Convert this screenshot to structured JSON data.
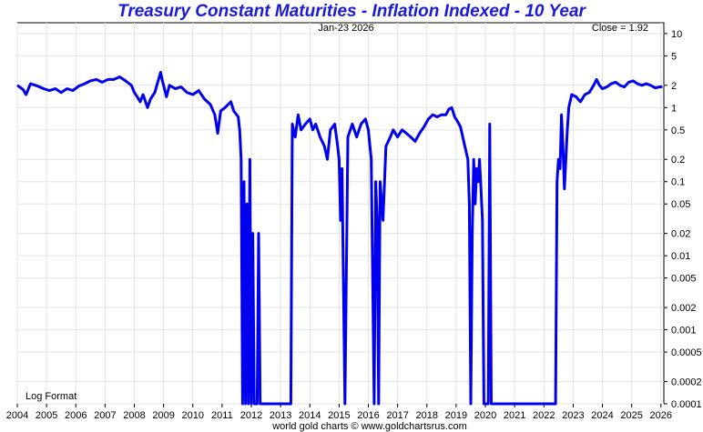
{
  "chart_data": {
    "type": "line",
    "title": "Treasury Constant Maturities - Inflation Indexed - 10 Year",
    "date_label": "Jan-23  2026",
    "close_label": "Close = 1.92",
    "scale_label": "Log Format",
    "footer": "world gold charts © www.goldchartsrus.com",
    "scale": "log",
    "xlim": [
      2004.0,
      2026.1
    ],
    "ylim": [
      0.0001,
      14
    ],
    "grid": true,
    "line_color": "#0000ee",
    "x_ticks": [
      "2004",
      "2005",
      "2006",
      "2007",
      "2008",
      "2009",
      "2010",
      "2011",
      "2012",
      "2013",
      "2014",
      "2015",
      "2016",
      "2017",
      "2018",
      "2019",
      "2020",
      "2021",
      "2022",
      "2023",
      "2024",
      "2025",
      "2026"
    ],
    "y_ticks": [
      {
        "v": 10,
        "label": "10"
      },
      {
        "v": 5,
        "label": "5"
      },
      {
        "v": 2,
        "label": "2"
      },
      {
        "v": 1,
        "label": "1"
      },
      {
        "v": 0.5,
        "label": "0.5"
      },
      {
        "v": 0.2,
        "label": "0.2"
      },
      {
        "v": 0.1,
        "label": "0.1"
      },
      {
        "v": 0.05,
        "label": "0.05"
      },
      {
        "v": 0.02,
        "label": "0.02"
      },
      {
        "v": 0.01,
        "label": "0.01"
      },
      {
        "v": 0.005,
        "label": "0.005"
      },
      {
        "v": 0.002,
        "label": "0.002"
      },
      {
        "v": 0.001,
        "label": "0.001"
      },
      {
        "v": 0.0005,
        "label": "0.0005"
      },
      {
        "v": 0.0002,
        "label": "0.0002"
      },
      {
        "v": 0.0001,
        "label": "0.0001"
      }
    ],
    "series": [
      {
        "points": [
          [
            2004.0,
            2.0
          ],
          [
            2004.2,
            1.75
          ],
          [
            2004.3,
            1.5
          ],
          [
            2004.45,
            2.1
          ],
          [
            2004.7,
            1.95
          ],
          [
            2004.9,
            1.8
          ],
          [
            2005.1,
            1.7
          ],
          [
            2005.3,
            1.8
          ],
          [
            2005.5,
            1.6
          ],
          [
            2005.7,
            1.8
          ],
          [
            2005.9,
            1.7
          ],
          [
            2006.1,
            1.95
          ],
          [
            2006.3,
            2.1
          ],
          [
            2006.5,
            2.3
          ],
          [
            2006.7,
            2.4
          ],
          [
            2006.9,
            2.2
          ],
          [
            2007.1,
            2.4
          ],
          [
            2007.3,
            2.4
          ],
          [
            2007.5,
            2.6
          ],
          [
            2007.7,
            2.3
          ],
          [
            2007.9,
            2.0
          ],
          [
            2008.0,
            1.6
          ],
          [
            2008.1,
            1.4
          ],
          [
            2008.2,
            1.2
          ],
          [
            2008.3,
            1.5
          ],
          [
            2008.45,
            1.0
          ],
          [
            2008.55,
            1.3
          ],
          [
            2008.7,
            1.6
          ],
          [
            2008.8,
            2.2
          ],
          [
            2008.9,
            3.0
          ],
          [
            2008.95,
            2.4
          ],
          [
            2009.0,
            2.0
          ],
          [
            2009.1,
            1.4
          ],
          [
            2009.2,
            2.0
          ],
          [
            2009.4,
            1.8
          ],
          [
            2009.6,
            1.9
          ],
          [
            2009.8,
            1.6
          ],
          [
            2010.0,
            1.5
          ],
          [
            2010.2,
            1.7
          ],
          [
            2010.4,
            1.3
          ],
          [
            2010.6,
            1.1
          ],
          [
            2010.75,
            0.8
          ],
          [
            2010.85,
            0.45
          ],
          [
            2010.95,
            0.9
          ],
          [
            2011.1,
            1.0
          ],
          [
            2011.3,
            1.2
          ],
          [
            2011.4,
            0.9
          ],
          [
            2011.55,
            0.75
          ],
          [
            2011.6,
            0.5
          ],
          [
            2011.65,
            0.2
          ],
          [
            2011.7,
            0.0001
          ],
          [
            2011.75,
            0.1
          ],
          [
            2011.8,
            0.0001
          ],
          [
            2011.85,
            0.05
          ],
          [
            2011.9,
            0.0001
          ],
          [
            2011.95,
            0.2
          ],
          [
            2012.0,
            0.0001
          ],
          [
            2012.05,
            0.02
          ],
          [
            2012.1,
            0.0001
          ],
          [
            2012.2,
            0.0001
          ],
          [
            2012.25,
            0.02
          ],
          [
            2012.3,
            0.0001
          ],
          [
            2013.35,
            0.0001
          ],
          [
            2013.4,
            0.6
          ],
          [
            2013.5,
            0.4
          ],
          [
            2013.6,
            0.8
          ],
          [
            2013.7,
            0.5
          ],
          [
            2013.85,
            0.6
          ],
          [
            2014.0,
            0.7
          ],
          [
            2014.1,
            0.5
          ],
          [
            2014.2,
            0.6
          ],
          [
            2014.35,
            0.4
          ],
          [
            2014.5,
            0.3
          ],
          [
            2014.6,
            0.2
          ],
          [
            2014.7,
            0.5
          ],
          [
            2014.85,
            0.6
          ],
          [
            2014.95,
            0.3
          ],
          [
            2015.0,
            0.2
          ],
          [
            2015.05,
            0.03
          ],
          [
            2015.1,
            0.15
          ],
          [
            2015.2,
            0.0001
          ],
          [
            2015.3,
            0.4
          ],
          [
            2015.45,
            0.6
          ],
          [
            2015.6,
            0.4
          ],
          [
            2015.75,
            0.6
          ],
          [
            2015.9,
            0.7
          ],
          [
            2016.0,
            0.5
          ],
          [
            2016.1,
            0.2
          ],
          [
            2016.2,
            0.0001
          ],
          [
            2016.25,
            0.1
          ],
          [
            2016.3,
            0.03
          ],
          [
            2016.35,
            0.0001
          ],
          [
            2016.4,
            0.1
          ],
          [
            2016.5,
            0.03
          ],
          [
            2016.6,
            0.3
          ],
          [
            2016.75,
            0.4
          ],
          [
            2016.85,
            0.5
          ],
          [
            2017.0,
            0.4
          ],
          [
            2017.15,
            0.5
          ],
          [
            2017.3,
            0.45
          ],
          [
            2017.45,
            0.4
          ],
          [
            2017.6,
            0.35
          ],
          [
            2017.75,
            0.45
          ],
          [
            2017.9,
            0.55
          ],
          [
            2018.05,
            0.7
          ],
          [
            2018.2,
            0.8
          ],
          [
            2018.35,
            0.75
          ],
          [
            2018.5,
            0.8
          ],
          [
            2018.65,
            0.8
          ],
          [
            2018.75,
            0.95
          ],
          [
            2018.85,
            1.0
          ],
          [
            2018.95,
            0.75
          ],
          [
            2019.05,
            0.65
          ],
          [
            2019.15,
            0.55
          ],
          [
            2019.3,
            0.3
          ],
          [
            2019.4,
            0.2
          ],
          [
            2019.45,
            0.05
          ],
          [
            2019.5,
            0.0001
          ],
          [
            2019.55,
            0.02
          ],
          [
            2019.6,
            0.2
          ],
          [
            2019.65,
            0.05
          ],
          [
            2019.7,
            0.15
          ],
          [
            2019.75,
            0.1
          ],
          [
            2019.8,
            0.2
          ],
          [
            2019.85,
            0.08
          ],
          [
            2019.9,
            0.03
          ],
          [
            2019.95,
            0.0001
          ],
          [
            2020.1,
            0.0001
          ],
          [
            2020.15,
            0.6
          ],
          [
            2020.2,
            0.0001
          ],
          [
            2022.4,
            0.0001
          ],
          [
            2022.45,
            0.1
          ],
          [
            2022.5,
            0.2
          ],
          [
            2022.55,
            0.15
          ],
          [
            2022.6,
            0.8
          ],
          [
            2022.65,
            0.3
          ],
          [
            2022.7,
            0.08
          ],
          [
            2022.75,
            0.2
          ],
          [
            2022.8,
            0.5
          ],
          [
            2022.85,
            1.0
          ],
          [
            2022.95,
            1.5
          ],
          [
            2023.1,
            1.4
          ],
          [
            2023.25,
            1.2
          ],
          [
            2023.4,
            1.5
          ],
          [
            2023.55,
            1.6
          ],
          [
            2023.7,
            2.0
          ],
          [
            2023.8,
            2.4
          ],
          [
            2023.9,
            2.0
          ],
          [
            2024.0,
            1.8
          ],
          [
            2024.15,
            1.9
          ],
          [
            2024.3,
            2.1
          ],
          [
            2024.45,
            2.2
          ],
          [
            2024.6,
            2.0
          ],
          [
            2024.75,
            1.9
          ],
          [
            2024.9,
            2.2
          ],
          [
            2025.05,
            2.3
          ],
          [
            2025.2,
            2.1
          ],
          [
            2025.35,
            2.0
          ],
          [
            2025.5,
            2.1
          ],
          [
            2025.65,
            2.0
          ],
          [
            2025.8,
            1.85
          ],
          [
            2025.95,
            1.9
          ],
          [
            2026.05,
            1.92
          ]
        ]
      }
    ]
  }
}
